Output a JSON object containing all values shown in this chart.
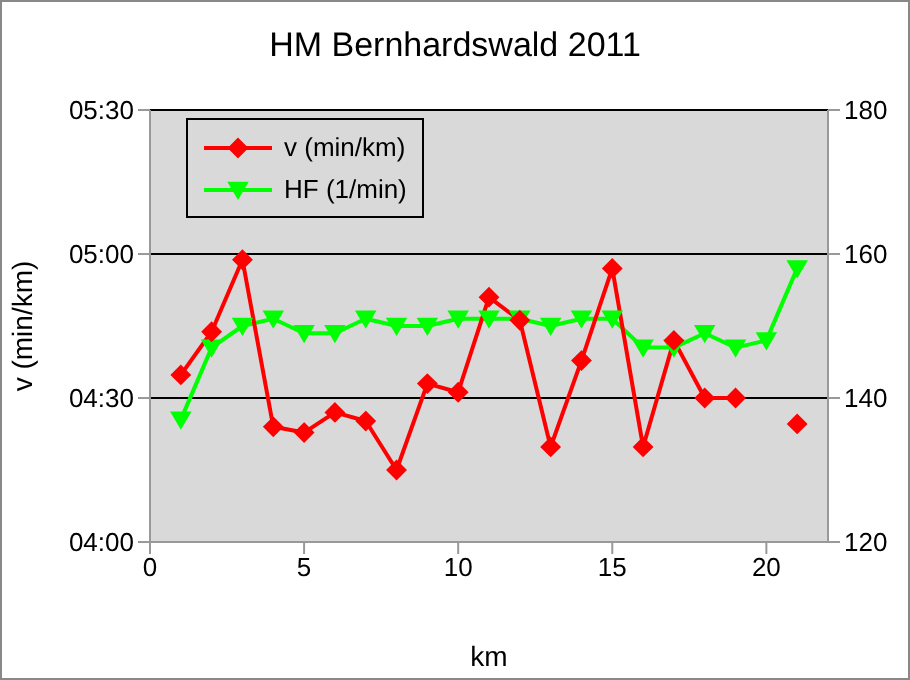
{
  "chart_data": {
    "type": "line",
    "title": "HM Bernhardswald 2011",
    "xlabel": "km",
    "ylabel": "v (min/km)",
    "x": [
      1,
      2,
      3,
      4,
      5,
      6,
      7,
      8,
      9,
      10,
      11,
      12,
      13,
      14,
      15,
      16,
      17,
      18,
      19,
      20,
      21
    ],
    "series": [
      {
        "name": "v (min/km)",
        "color": "#ff0000",
        "marker": "diamond",
        "values": [
          4.58,
          4.73,
          4.98,
          4.4,
          4.38,
          4.45,
          4.42,
          4.25,
          4.55,
          4.52,
          4.85,
          4.77,
          4.33,
          4.63,
          4.95,
          4.33,
          4.7,
          4.5,
          4.5,
          null,
          4.41
        ]
      },
      {
        "name": "HF (1/min)",
        "color": "#00ff00",
        "marker": "triangle",
        "axis": "y2",
        "values": [
          137,
          147,
          150,
          151,
          149,
          149,
          151,
          150,
          150,
          151,
          151,
          151,
          150,
          151,
          151,
          147,
          147,
          149,
          147,
          148,
          158
        ]
      }
    ],
    "xlim": [
      0,
      22
    ],
    "xticks": [
      0,
      5,
      10,
      15,
      20
    ],
    "ylim": [
      4,
      5.5
    ],
    "yticks": [
      {
        "value": 4,
        "label": "04:00"
      },
      {
        "value": 4.5,
        "label": "04:30"
      },
      {
        "value": 5,
        "label": "05:00"
      },
      {
        "value": 5.5,
        "label": "05:30"
      }
    ],
    "y2lim": [
      120,
      180
    ],
    "y2ticks": [
      120,
      140,
      160,
      180
    ],
    "grid": "y",
    "legend": "top left"
  }
}
